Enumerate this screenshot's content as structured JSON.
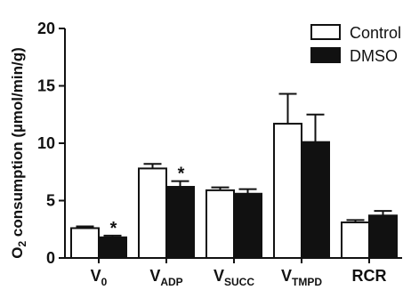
{
  "chart_data": {
    "type": "bar",
    "title": "",
    "ylabel": {
      "main": "O",
      "sub": "2",
      "rest": " consumption (µmol/min/g)"
    },
    "ylim": [
      0,
      20
    ],
    "yticks": [
      0,
      5,
      10,
      15,
      20
    ],
    "grid": false,
    "legend_position": "top-right",
    "categories": [
      {
        "main": "V",
        "sub": "0"
      },
      {
        "main": "V",
        "sub": "ADP"
      },
      {
        "main": "V",
        "sub": "SUCC"
      },
      {
        "main": "V",
        "sub": "TMPD"
      },
      {
        "main": "RCR",
        "sub": ""
      }
    ],
    "series": [
      {
        "name": "Control",
        "color": "#ffffff",
        "values": [
          2.6,
          7.8,
          5.9,
          11.7,
          3.1
        ],
        "errors": [
          0.15,
          0.4,
          0.25,
          2.6,
          0.2
        ]
      },
      {
        "name": "DMSO",
        "color": "#111111",
        "values": [
          1.8,
          6.2,
          5.6,
          10.1,
          3.7
        ],
        "errors": [
          0.15,
          0.5,
          0.4,
          2.4,
          0.4
        ]
      }
    ],
    "significance": [
      {
        "category_index": 0,
        "series_index": 1,
        "mark": "*"
      },
      {
        "category_index": 1,
        "series_index": 1,
        "mark": "*"
      }
    ]
  }
}
